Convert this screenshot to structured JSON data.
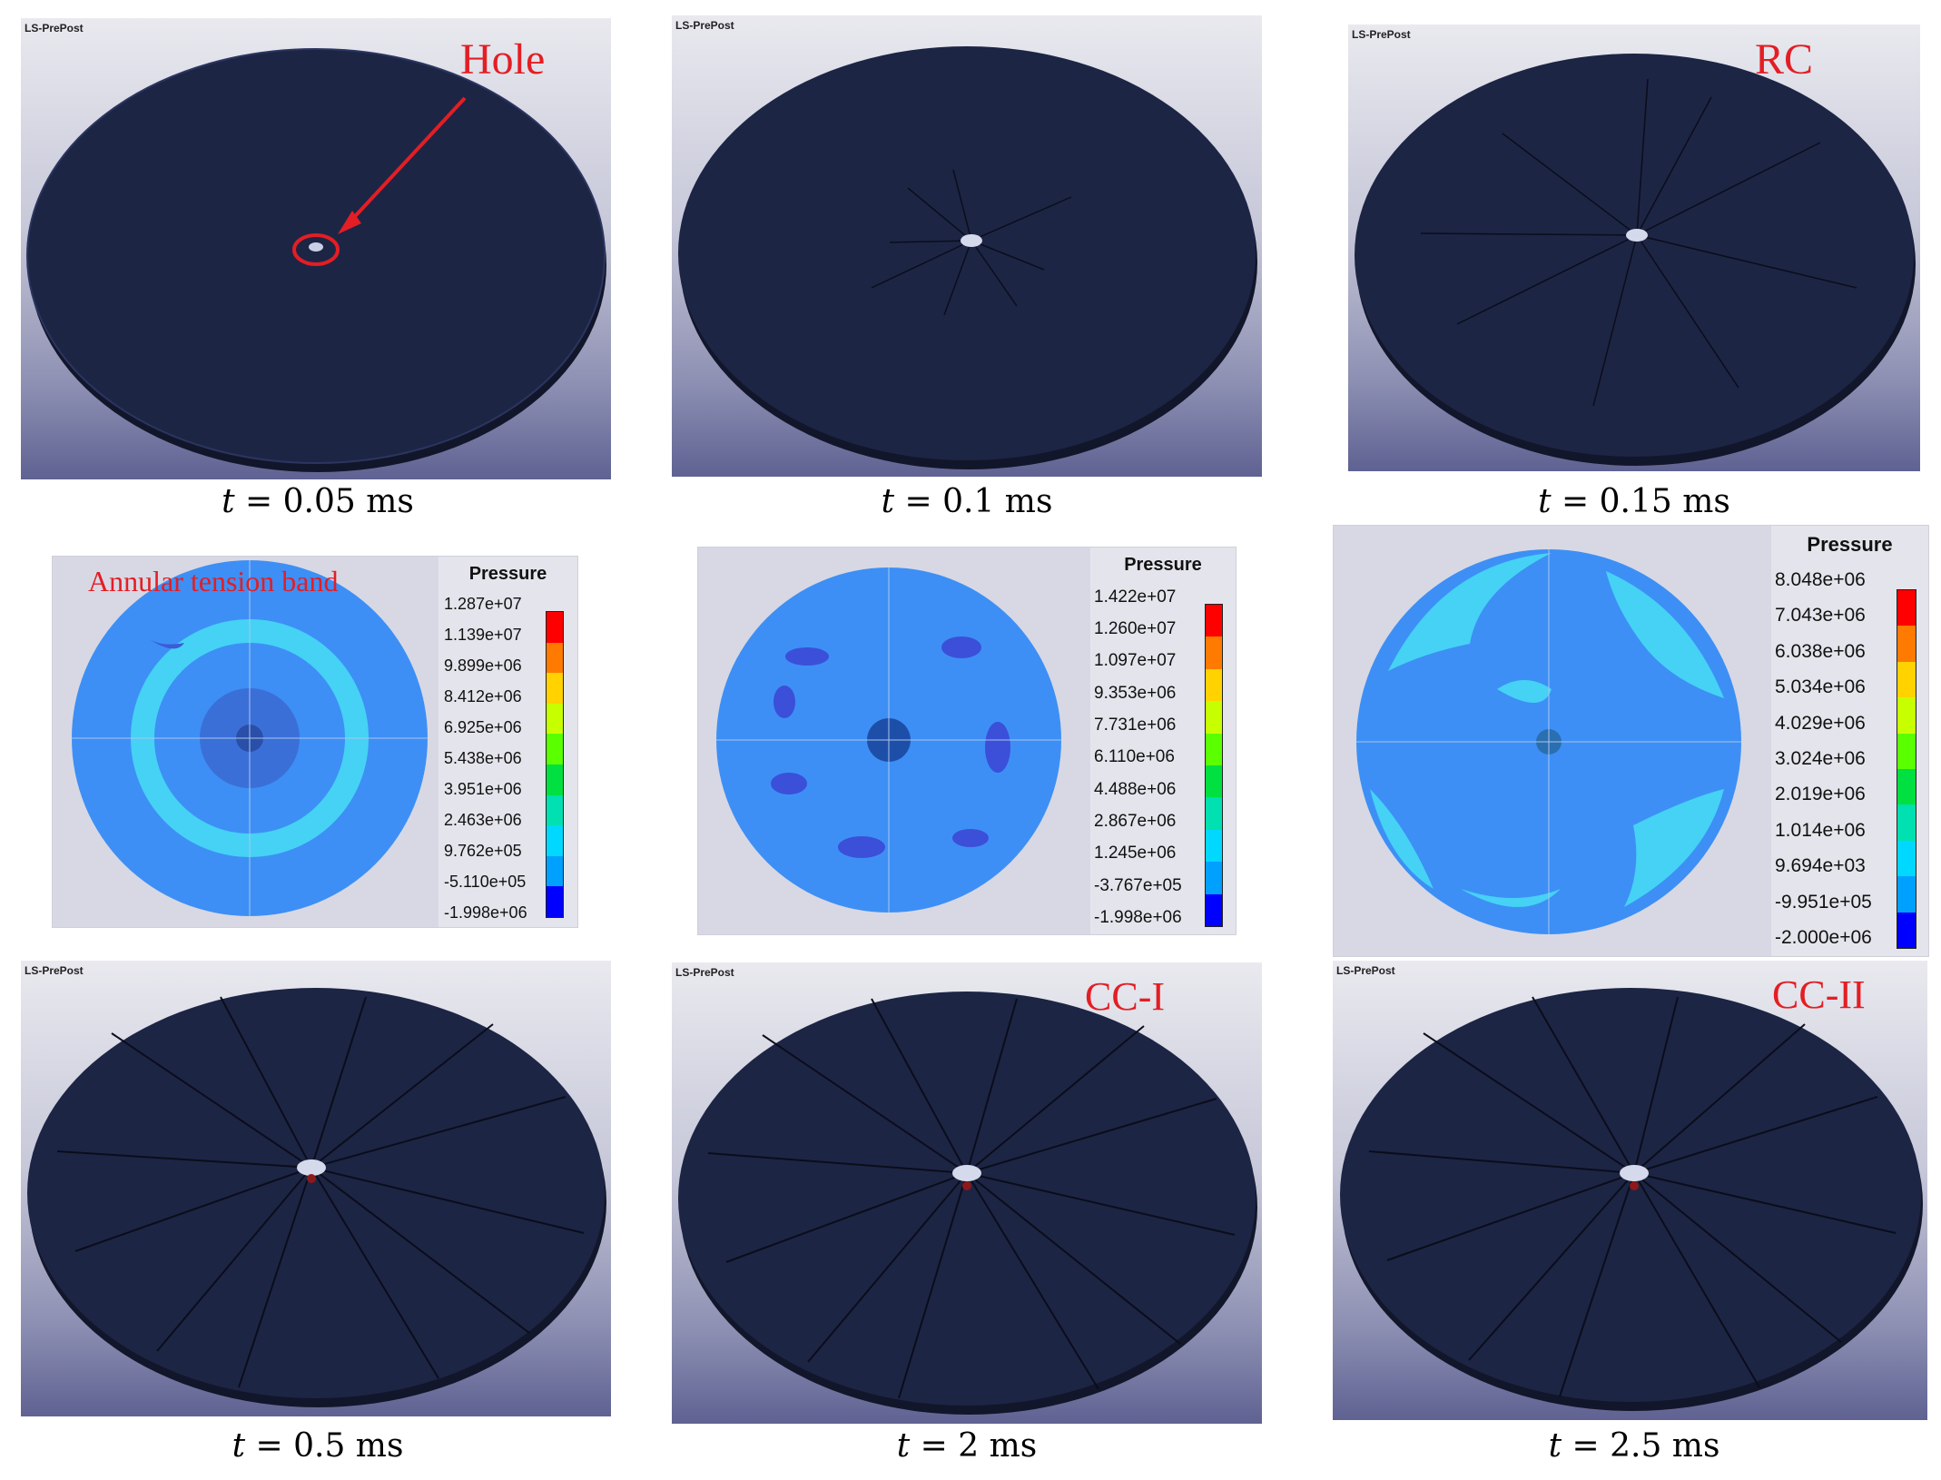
{
  "panels": [
    {
      "id": "p1",
      "type": "mesh",
      "tag": "LS-PrePost",
      "caption_var": "t",
      "caption_rest": "= 0.05 ms",
      "annotation": "Hole"
    },
    {
      "id": "p2",
      "type": "mesh",
      "tag": "LS-PrePost",
      "caption_var": "t",
      "caption_rest": "= 0.1 ms"
    },
    {
      "id": "p3",
      "type": "mesh",
      "tag": "LS-PrePost",
      "caption_var": "t",
      "caption_rest": "= 0.15 ms",
      "annotation": "RC"
    },
    {
      "id": "p4",
      "type": "pressure",
      "annotation": "Annular tension band",
      "legend_title": "Pressure",
      "values": [
        "1.287e+07",
        "1.139e+07",
        "9.899e+06",
        "8.412e+06",
        "6.925e+06",
        "5.438e+06",
        "3.951e+06",
        "2.463e+06",
        "9.762e+05",
        "-5.110e+05",
        "-1.998e+06"
      ]
    },
    {
      "id": "p5",
      "type": "pressure",
      "legend_title": "Pressure",
      "values": [
        "1.422e+07",
        "1.260e+07",
        "1.097e+07",
        "9.353e+06",
        "7.731e+06",
        "6.110e+06",
        "4.488e+06",
        "2.867e+06",
        "1.245e+06",
        "-3.767e+05",
        "-1.998e+06"
      ]
    },
    {
      "id": "p6",
      "type": "pressure",
      "legend_title": "Pressure",
      "values": [
        "8.048e+06",
        "7.043e+06",
        "6.038e+06",
        "5.034e+06",
        "4.029e+06",
        "3.024e+06",
        "2.019e+06",
        "1.014e+06",
        "9.694e+03",
        "-9.951e+05",
        "-2.000e+06"
      ]
    },
    {
      "id": "p7",
      "type": "mesh",
      "tag": "LS-PrePost",
      "caption_var": "t",
      "caption_rest": "= 0.5 ms"
    },
    {
      "id": "p8",
      "type": "mesh",
      "tag": "LS-PrePost",
      "caption_var": "t",
      "caption_rest": "= 2 ms",
      "annotation": "CC-I"
    },
    {
      "id": "p9",
      "type": "mesh",
      "tag": "LS-PrePost",
      "caption_var": "t",
      "caption_rest": "= 2.5 ms",
      "annotation": "CC-II"
    }
  ],
  "colors": {
    "annotation": "#e31e24",
    "mesh": "#1d2545",
    "fringe": [
      "#ff0000",
      "#ff7a00",
      "#ffd200",
      "#c8ff00",
      "#5aff00",
      "#00e040",
      "#00e0b0",
      "#00d8ff",
      "#00a0ff",
      "#0050ff",
      "#0000ff"
    ],
    "plate_blue": "#3d8ff5",
    "light_blue": "#45d2f5",
    "dark_blue": "#3b5bd8"
  }
}
